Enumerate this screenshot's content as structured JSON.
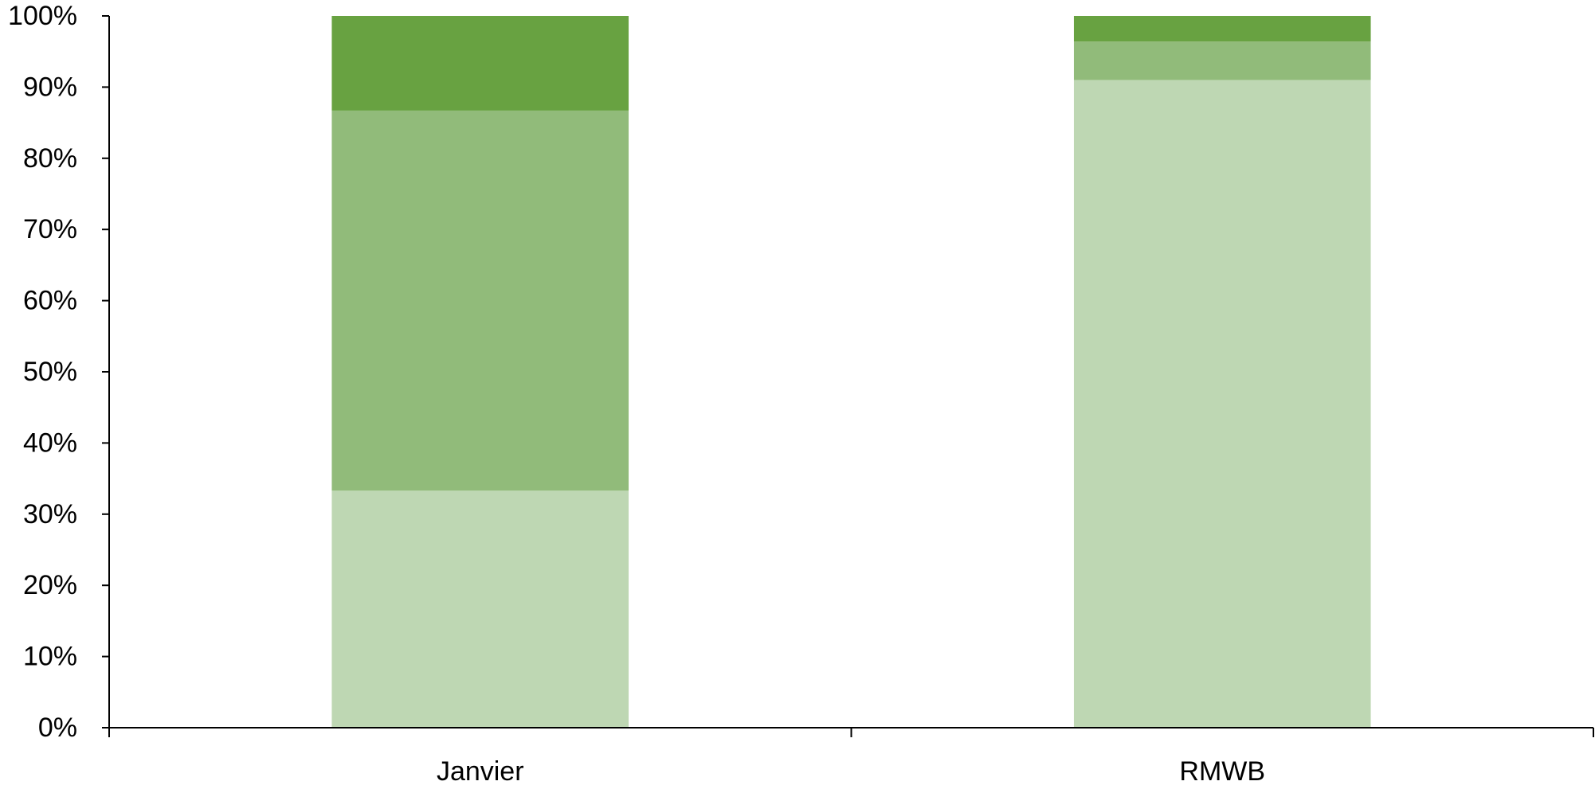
{
  "chart_data": {
    "type": "bar",
    "stacked": true,
    "categories": [
      "Janvier",
      "RMWB"
    ],
    "series": [
      {
        "values": [
          33.3,
          91.0
        ],
        "color": "#bed7b3"
      },
      {
        "values": [
          53.4,
          5.4
        ],
        "color": "#91bb7a"
      },
      {
        "values": [
          13.3,
          3.6
        ],
        "color": "#68a241"
      }
    ],
    "y_ticks": [
      "0%",
      "10%",
      "20%",
      "30%",
      "40%",
      "50%",
      "60%",
      "70%",
      "80%",
      "90%",
      "100%"
    ],
    "ylim": [
      0,
      100
    ],
    "grid": false,
    "legend": "none"
  }
}
